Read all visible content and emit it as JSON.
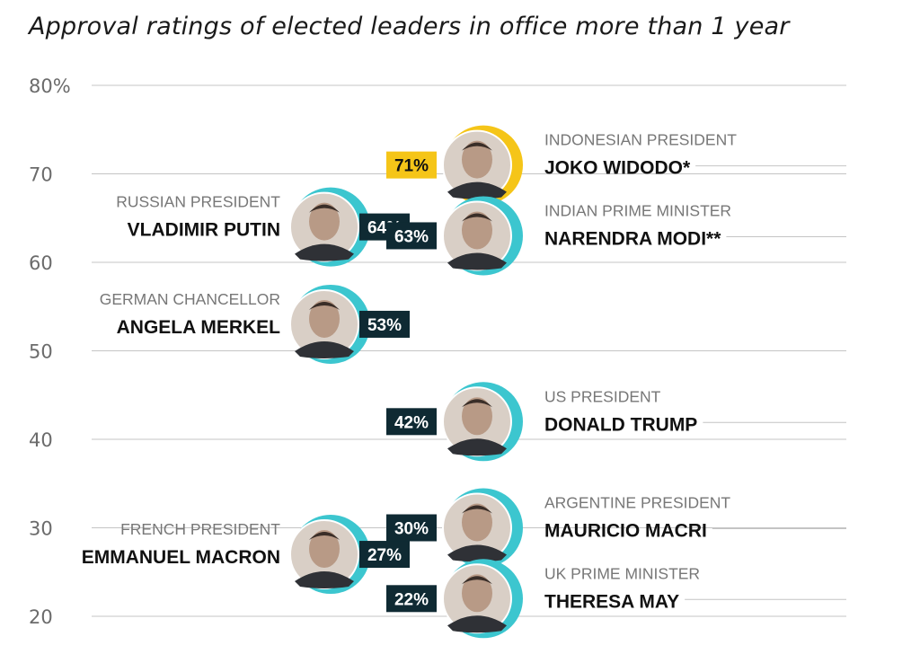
{
  "chart_data": {
    "type": "scatter",
    "title": "Approval ratings of elected leaders in office more than 1 year",
    "ylim": [
      20,
      80
    ],
    "y_ticks": [
      {
        "value": 80,
        "label": "80%"
      },
      {
        "value": 70,
        "label": "70"
      },
      {
        "value": 60,
        "label": "60"
      },
      {
        "value": 50,
        "label": "50"
      },
      {
        "value": 40,
        "label": "40"
      },
      {
        "value": 30,
        "label": "30"
      },
      {
        "value": 20,
        "label": "20"
      }
    ],
    "grid": true,
    "points": [
      {
        "role": "INDONESIAN PRESIDENT",
        "name": "JOKO WIDODO*",
        "value": 71,
        "label": "71%",
        "side": "right",
        "highlight": true
      },
      {
        "role": "RUSSIAN PRESIDENT",
        "name": "VLADIMIR PUTIN",
        "value": 64,
        "label": "64%",
        "side": "left",
        "highlight": false
      },
      {
        "role": "INDIAN PRIME MINISTER",
        "name": "NARENDRA MODI**",
        "value": 63,
        "label": "63%",
        "side": "right",
        "highlight": false
      },
      {
        "role": "GERMAN CHANCELLOR",
        "name": "ANGELA MERKEL",
        "value": 53,
        "label": "53%",
        "side": "left",
        "highlight": false
      },
      {
        "role": "US PRESIDENT",
        "name": "DONALD TRUMP",
        "value": 42,
        "label": "42%",
        "side": "right",
        "highlight": false
      },
      {
        "role": "ARGENTINE PRESIDENT",
        "name": "MAURICIO MACRI",
        "value": 30,
        "label": "30%",
        "side": "right",
        "highlight": false
      },
      {
        "role": "FRENCH PRESIDENT",
        "name": "EMMANUEL MACRON",
        "value": 27,
        "label": "27%",
        "side": "left",
        "highlight": false
      },
      {
        "role": "UK PRIME MINISTER",
        "name": "THERESA MAY",
        "value": 22,
        "label": "22%",
        "side": "right",
        "highlight": false
      }
    ]
  },
  "colors": {
    "ring": "#3cc6cf",
    "ring_highlight": "#f5c518",
    "badge_bg": "#0f2a33",
    "badge_highlight_bg": "#f5c518"
  }
}
